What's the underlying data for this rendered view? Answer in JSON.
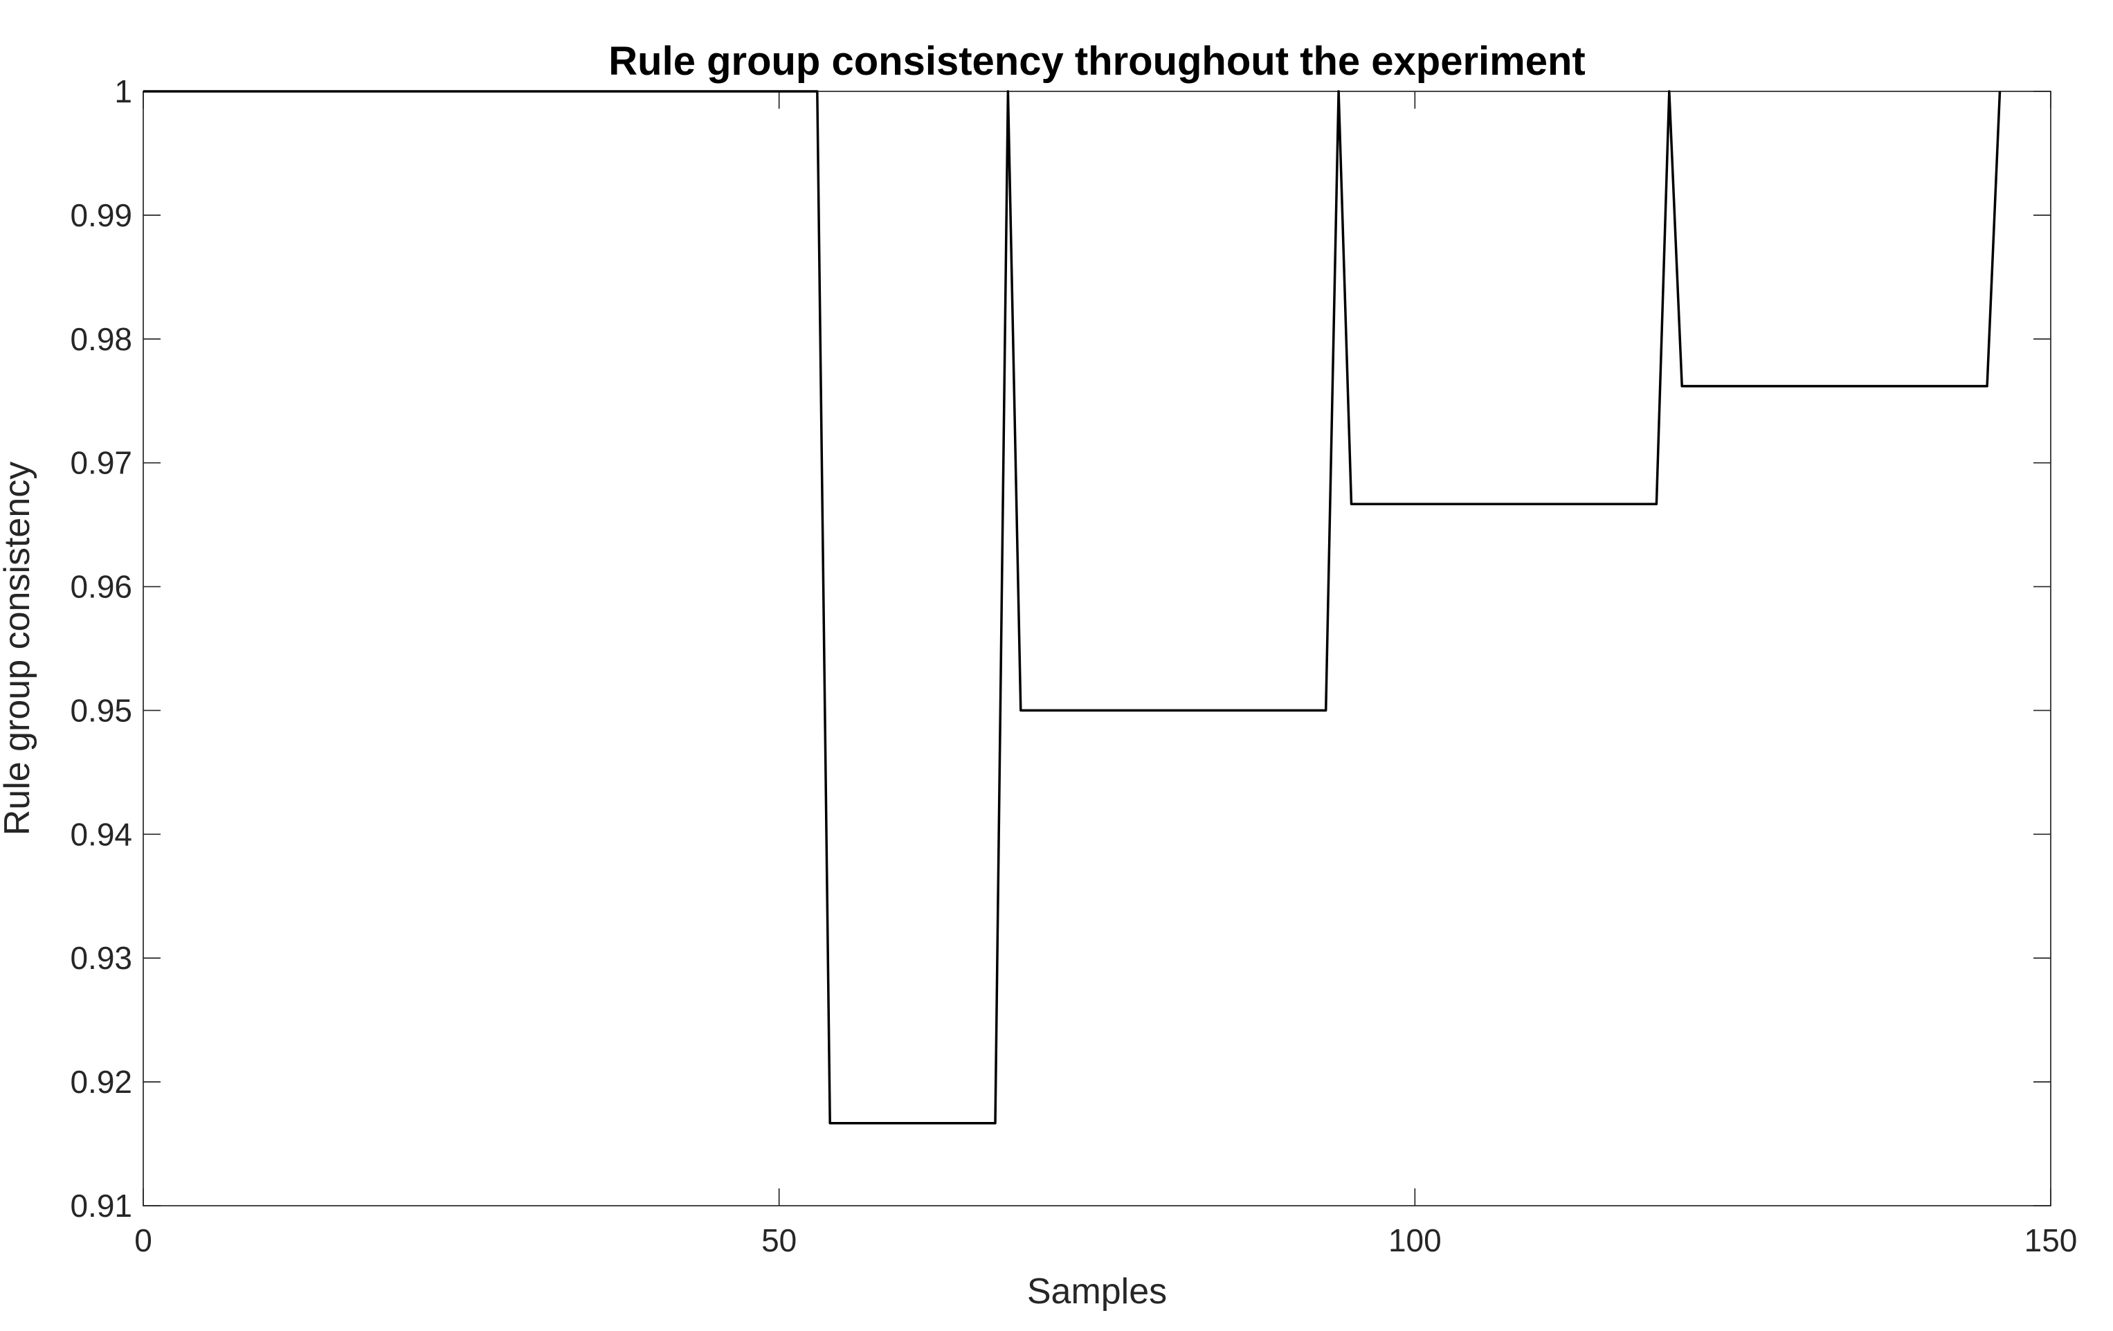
{
  "chart_data": {
    "type": "line",
    "title": "Rule group consistency throughout the experiment",
    "xlabel": "Samples",
    "ylabel": "Rule group consistency",
    "xlim": [
      0,
      150
    ],
    "ylim": [
      0.91,
      1.0
    ],
    "xticks": [
      0,
      50,
      100,
      150
    ],
    "xtick_labels": [
      "0",
      "50",
      "100",
      "150"
    ],
    "yticks": [
      0.91,
      0.92,
      0.93,
      0.94,
      0.95,
      0.96,
      0.97,
      0.98,
      0.99,
      1.0
    ],
    "ytick_labels": [
      "0.91",
      "0.92",
      "0.93",
      "0.94",
      "0.95",
      "0.96",
      "0.97",
      "0.98",
      "0.99",
      "1"
    ],
    "grid": false,
    "legend_position": "none",
    "box": true,
    "axis_color": "#262626",
    "background": "#ffffff",
    "series": [
      {
        "name": "rule group consistency",
        "color": "#000000",
        "x": [
          0,
          53,
          54,
          67,
          68,
          69,
          93,
          94,
          95,
          119,
          120,
          121,
          145,
          146
        ],
        "y": [
          1.0,
          1.0,
          0.91667,
          0.91667,
          1.0,
          0.95,
          0.95,
          1.0,
          0.96667,
          0.96667,
          1.0,
          0.97619,
          0.97619,
          1.0
        ]
      }
    ]
  }
}
